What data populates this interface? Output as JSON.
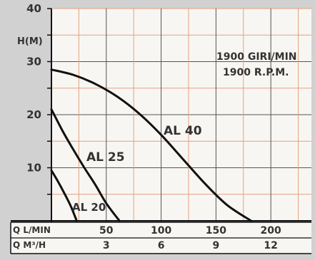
{
  "chart_data": {
    "type": "line",
    "title_lines": [
      "1900 GIRI/MIN",
      "1900 R.P.M."
    ],
    "ylabel": "H(M)",
    "ylim": [
      0,
      40
    ],
    "y_ticks": [
      10,
      20,
      30,
      40
    ],
    "x_axis_rows": [
      {
        "label": "Q L/MIN",
        "ticks": [
          {
            "q_lmin": 50,
            "text": "50"
          },
          {
            "q_lmin": 100,
            "text": "100"
          },
          {
            "q_lmin": 150,
            "text": "150"
          },
          {
            "q_lmin": 200,
            "text": "200"
          }
        ]
      },
      {
        "label": "Q M³/H",
        "ticks": [
          {
            "q_lmin": 50,
            "text": "3"
          },
          {
            "q_lmin": 100,
            "text": "6"
          },
          {
            "q_lmin": 150,
            "text": "9"
          },
          {
            "q_lmin": 200,
            "text": "12"
          }
        ]
      }
    ],
    "xlim_lmin": [
      0,
      237
    ],
    "series": [
      {
        "name": "AL 40",
        "points": [
          [
            0,
            28.5
          ],
          [
            20,
            27.5
          ],
          [
            40,
            25.8
          ],
          [
            60,
            23.4
          ],
          [
            80,
            20.2
          ],
          [
            100,
            16.2
          ],
          [
            120,
            11.6
          ],
          [
            140,
            7
          ],
          [
            160,
            3
          ],
          [
            182,
            0
          ]
        ]
      },
      {
        "name": "AL 25",
        "points": [
          [
            0,
            21
          ],
          [
            10,
            17
          ],
          [
            20,
            13.4
          ],
          [
            30,
            10
          ],
          [
            40,
            6.8
          ],
          [
            50,
            3.3
          ],
          [
            62,
            0
          ]
        ]
      },
      {
        "name": "AL 20",
        "points": [
          [
            0,
            9.5
          ],
          [
            6,
            7.4
          ],
          [
            12,
            5.1
          ],
          [
            18,
            2.6
          ],
          [
            23,
            0
          ]
        ]
      }
    ]
  }
}
